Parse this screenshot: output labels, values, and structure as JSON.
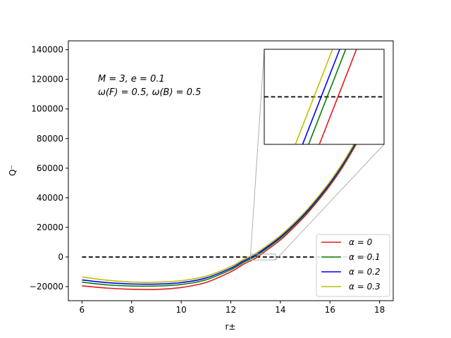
{
  "chart_data": {
    "type": "line",
    "xlabel": "r±",
    "ylabel": "Q⁻",
    "xlim": [
      5.45,
      18.55
    ],
    "ylim": [
      -29500,
      146000
    ],
    "xticks": [
      6,
      8,
      10,
      12,
      14,
      16,
      18
    ],
    "yticks": [
      -20000,
      0,
      20000,
      40000,
      60000,
      80000,
      100000,
      120000,
      140000
    ],
    "annotation": {
      "line1": "M = 3, e = 0.1",
      "line2": "ω(F) = 0.5, ω(B) = 0.5"
    },
    "legend": {
      "placement": "lower-right",
      "entries": [
        "α = 0",
        "α = 0.1",
        "α = 0.2",
        "α = 0.3"
      ]
    },
    "reference_line": {
      "y": 0,
      "x_range": [
        6,
        18
      ],
      "style": "dashed",
      "color": "#000000"
    },
    "series": [
      {
        "name": "α = 0",
        "color": "#e41a1c",
        "x": [
          6,
          7,
          8,
          9,
          10,
          11,
          12,
          12.5,
          13,
          13.5,
          14,
          14.5,
          15,
          15.5,
          16,
          16.5,
          17,
          17.5,
          18
        ],
        "y": [
          -19500,
          -21000,
          -21800,
          -21900,
          -20600,
          -17200,
          -10000,
          -5000,
          -800,
          5200,
          11500,
          19300,
          27800,
          37600,
          48300,
          60500,
          74500,
          89700,
          106000
        ]
      },
      {
        "name": "α = 0.1",
        "color": "#008000",
        "x": [
          6,
          7,
          8,
          9,
          10,
          11,
          12,
          12.5,
          13,
          13.5,
          14,
          14.5,
          15,
          15.5,
          16,
          16.5,
          17,
          17.5,
          18
        ],
        "y": [
          -17000,
          -18800,
          -19600,
          -19600,
          -18600,
          -15400,
          -8600,
          -3800,
          500,
          6400,
          12700,
          20400,
          28900,
          38600,
          49300,
          61500,
          75500,
          90700,
          107000
        ]
      },
      {
        "name": "α = 0.2",
        "color": "#0000ff",
        "x": [
          6,
          7,
          8,
          9,
          10,
          11,
          12,
          12.5,
          13,
          13.5,
          14,
          14.5,
          15,
          15.5,
          16,
          16.5,
          17,
          17.5,
          18
        ],
        "y": [
          -15500,
          -17300,
          -18200,
          -18300,
          -17300,
          -14200,
          -7600,
          -2800,
          1400,
          7200,
          13500,
          21100,
          29600,
          39300,
          50000,
          62200,
          76200,
          91400,
          107700
        ]
      },
      {
        "name": "α = 0.3",
        "color": "#bfbf00",
        "x": [
          6,
          7,
          8,
          9,
          10,
          11,
          12,
          12.5,
          13,
          13.5,
          14,
          14.5,
          15,
          15.5,
          16,
          16.5,
          17,
          17.5,
          18
        ],
        "y": [
          -13500,
          -15700,
          -16900,
          -17000,
          -16000,
          -13000,
          -6500,
          -1800,
          2400,
          8200,
          14500,
          22100,
          30600,
          40300,
          51000,
          63200,
          77200,
          92400,
          108700
        ]
      }
    ],
    "inset": {
      "xlim": [
        12.8,
        13.8
      ],
      "ylim": [
        -2000,
        2000
      ],
      "lines": [
        {
          "name": "α = 0",
          "color": "#e41a1c",
          "x0_at_ymin": 13.26,
          "x1_at_ymax": 13.57
        },
        {
          "name": "α = 0.1",
          "color": "#008000",
          "x0_at_ymin": 13.17,
          "x1_at_ymax": 13.48
        },
        {
          "name": "α = 0.2",
          "color": "#0000ff",
          "x0_at_ymin": 13.12,
          "x1_at_ymax": 13.43
        },
        {
          "name": "α = 0.3",
          "color": "#bfbf00",
          "x0_at_ymin": 13.06,
          "x1_at_ymax": 13.37
        }
      ]
    }
  }
}
